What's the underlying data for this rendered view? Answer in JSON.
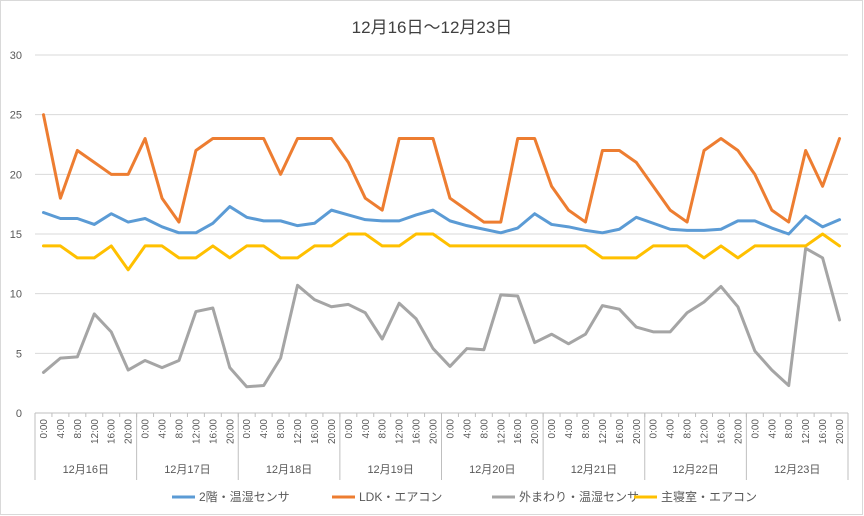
{
  "chart_data": {
    "type": "line",
    "title": "12月16日～12月23日",
    "ylim": [
      0,
      30
    ],
    "yticks": [
      0,
      5,
      10,
      15,
      20,
      25,
      30
    ],
    "grid": true,
    "legend_position": "bottom",
    "categories": [
      "0:00",
      "4:00",
      "8:00",
      "12:00",
      "16:00",
      "20:00",
      "0:00",
      "4:00",
      "8:00",
      "12:00",
      "16:00",
      "20:00",
      "0:00",
      "4:00",
      "8:00",
      "12:00",
      "16:00",
      "20:00",
      "0:00",
      "4:00",
      "8:00",
      "12:00",
      "16:00",
      "20:00",
      "0:00",
      "4:00",
      "8:00",
      "12:00",
      "16:00",
      "20:00",
      "0:00",
      "4:00",
      "8:00",
      "12:00",
      "16:00",
      "20:00",
      "0:00",
      "4:00",
      "8:00",
      "12:00",
      "16:00",
      "20:00",
      "0:00",
      "4:00",
      "8:00",
      "12:00",
      "16:00",
      "20:00"
    ],
    "groups": [
      "12月16日",
      "12月17日",
      "12月18日",
      "12月19日",
      "12月20日",
      "12月21日",
      "12月22日",
      "12月23日"
    ],
    "series": [
      {
        "name": "2階・温湿センサ",
        "color": "#5b9bd5",
        "values": [
          16.8,
          16.3,
          16.3,
          15.8,
          16.7,
          16.0,
          16.3,
          15.6,
          15.1,
          15.1,
          15.9,
          17.3,
          16.4,
          16.1,
          16.1,
          15.7,
          15.9,
          17.0,
          16.6,
          16.2,
          16.1,
          16.1,
          16.6,
          17.0,
          16.1,
          15.7,
          15.4,
          15.1,
          15.5,
          16.7,
          15.8,
          15.6,
          15.3,
          15.1,
          15.4,
          16.4,
          15.9,
          15.4,
          15.3,
          15.3,
          15.4,
          16.1,
          16.1,
          15.5,
          15.0,
          16.5,
          15.6,
          16.2
        ]
      },
      {
        "name": "LDK・エアコン",
        "color": "#ed7d31",
        "values": [
          25,
          18,
          22,
          21,
          20,
          20,
          23,
          18,
          16,
          22,
          23,
          23,
          23,
          23,
          20,
          23,
          23,
          23,
          21,
          18,
          17,
          23,
          23,
          23,
          18,
          17,
          16,
          16,
          23,
          23,
          19,
          17,
          16,
          22,
          22,
          21,
          19,
          17,
          16,
          22,
          23,
          22,
          20,
          17,
          16,
          22,
          19,
          23
        ]
      },
      {
        "name": "外まわり・温湿センサ",
        "color": "#a5a5a5",
        "values": [
          3.4,
          4.6,
          4.7,
          8.3,
          6.8,
          3.6,
          4.4,
          3.8,
          4.4,
          8.5,
          8.8,
          3.8,
          2.2,
          2.3,
          4.6,
          10.7,
          9.5,
          8.9,
          9.1,
          8.4,
          6.2,
          9.2,
          7.9,
          5.4,
          3.9,
          5.4,
          5.3,
          9.9,
          9.8,
          5.9,
          6.6,
          5.8,
          6.6,
          9.0,
          8.7,
          7.2,
          6.8,
          6.8,
          8.4,
          9.3,
          10.6,
          8.9,
          5.2,
          3.6,
          2.3,
          13.8,
          13.0,
          7.8
        ]
      },
      {
        "name": "主寝室・エアコン",
        "color": "#ffc000",
        "values": [
          14,
          14,
          13,
          13,
          14,
          12,
          14,
          14,
          13,
          13,
          14,
          13,
          14,
          14,
          13,
          13,
          14,
          14,
          15,
          15,
          14,
          14,
          15,
          15,
          14,
          14,
          14,
          14,
          14,
          14,
          14,
          14,
          14,
          13,
          13,
          13,
          14,
          14,
          14,
          13,
          14,
          13,
          14,
          14,
          14,
          14,
          15,
          14
        ]
      }
    ]
  }
}
